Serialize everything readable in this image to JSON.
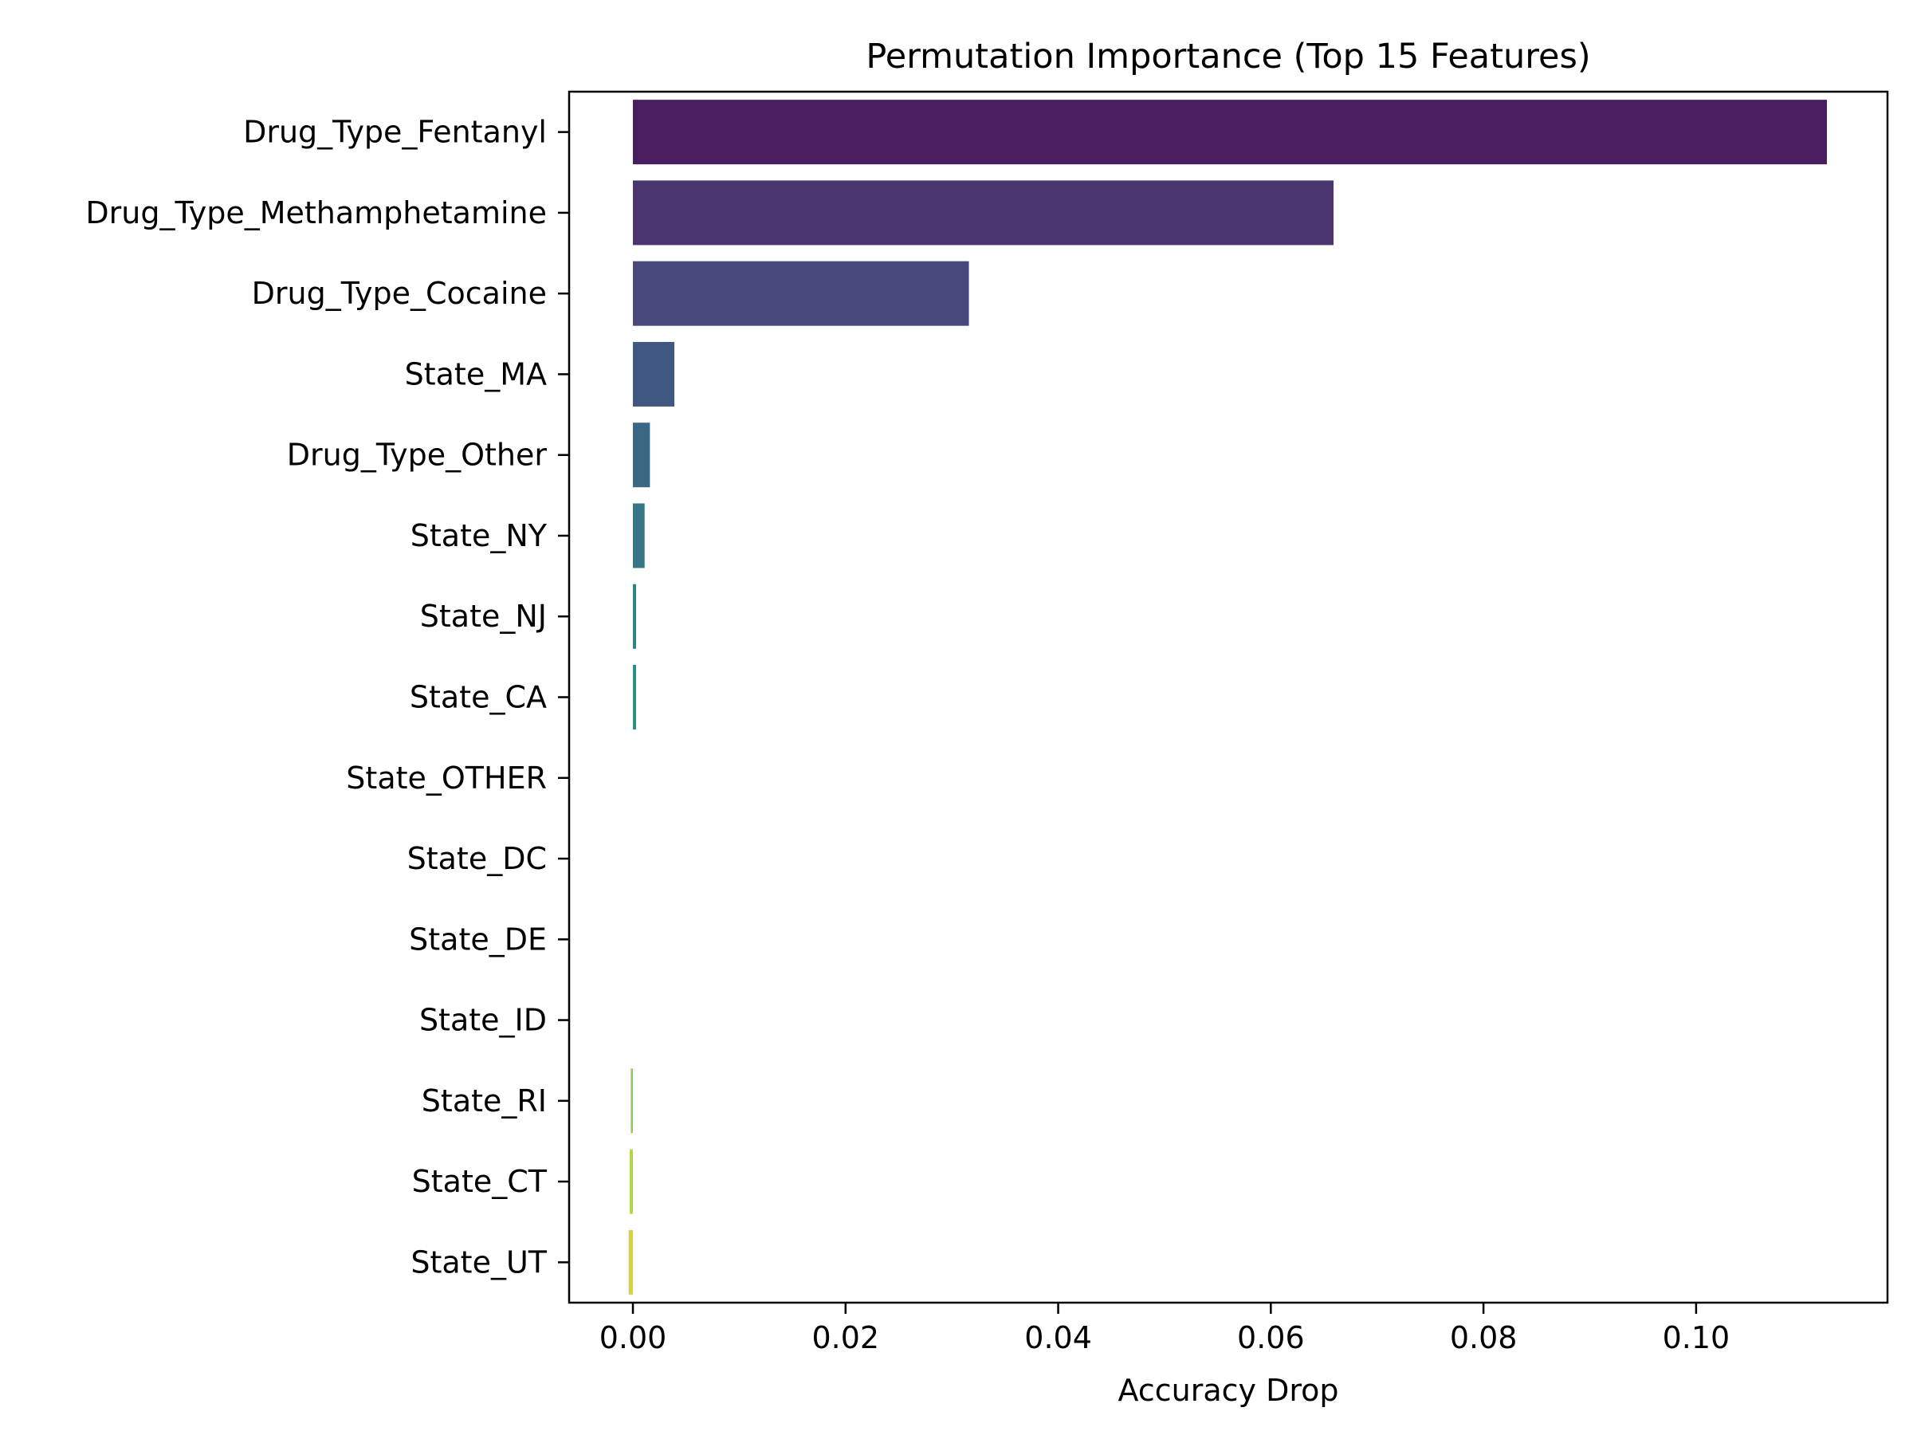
{
  "chart_data": {
    "type": "bar",
    "orientation": "horizontal",
    "title": "Permutation Importance (Top 15 Features)",
    "xlabel": "Accuracy Drop",
    "ylabel": "",
    "xlim": [
      -0.006,
      0.118
    ],
    "xticks": [
      0.0,
      0.02,
      0.04,
      0.06,
      0.08,
      0.1
    ],
    "xtick_labels": [
      "0.00",
      "0.02",
      "0.04",
      "0.06",
      "0.08",
      "0.10"
    ],
    "grid": false,
    "legend": "none",
    "categories": [
      "Drug_Type_Fentanyl",
      "Drug_Type_Methamphetamine",
      "Drug_Type_Cocaine",
      "State_MA",
      "Drug_Type_Other",
      "State_NY",
      "State_NJ",
      "State_CA",
      "State_OTHER",
      "State_DC",
      "State_DE",
      "State_ID",
      "State_RI",
      "State_CT",
      "State_UT"
    ],
    "values": [
      0.1123,
      0.0659,
      0.0316,
      0.0039,
      0.0016,
      0.0011,
      0.0003,
      0.0003,
      0.0,
      0.0,
      0.0,
      0.0,
      -0.0002,
      -0.0003,
      -0.0004
    ],
    "colors": [
      "#481e5f",
      "#4a356f",
      "#47487b",
      "#405881",
      "#3a6783",
      "#357586",
      "#308285",
      "#2b8f88",
      "#2a9d87",
      "#33ab82",
      "#4ab877",
      "#6ec468",
      "#91cd55",
      "#b5d543",
      "#d9d23a"
    ]
  }
}
